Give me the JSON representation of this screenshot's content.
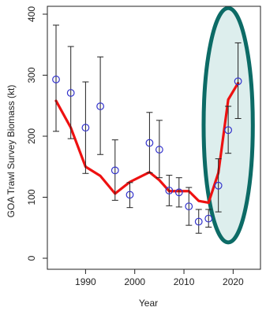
{
  "chart_data": {
    "type": "scatter",
    "title": "",
    "xlabel": "Year",
    "ylabel": "GOA Trawl Survey Biomass (kt)",
    "xlim": [
      1982,
      2023
    ],
    "ylim": [
      0,
      400
    ],
    "x_ticks": [
      1990,
      2000,
      2010,
      2020
    ],
    "y_ticks": [
      0,
      100,
      200,
      300,
      400
    ],
    "grid": false,
    "legend": "none",
    "series": [
      {
        "kind": "points_with_errorbars",
        "color": "#3333cc",
        "points": [
          {
            "x": 1984,
            "y": 293,
            "lo": 208,
            "hi": 382
          },
          {
            "x": 1987,
            "y": 271,
            "lo": 196,
            "hi": 347
          },
          {
            "x": 1990,
            "y": 214,
            "lo": 139,
            "hi": 289
          },
          {
            "x": 1993,
            "y": 249,
            "lo": 170,
            "hi": 330
          },
          {
            "x": 1996,
            "y": 144,
            "lo": 95,
            "hi": 194
          },
          {
            "x": 1999,
            "y": 104,
            "lo": 83,
            "hi": 124
          },
          {
            "x": 2003,
            "y": 189,
            "lo": 140,
            "hi": 239
          },
          {
            "x": 2005,
            "y": 178,
            "lo": 132,
            "hi": 226
          },
          {
            "x": 2007,
            "y": 111,
            "lo": 86,
            "hi": 136
          },
          {
            "x": 2009,
            "y": 108,
            "lo": 84,
            "hi": 132
          },
          {
            "x": 2011,
            "y": 85,
            "lo": 54,
            "hi": 116
          },
          {
            "x": 2013,
            "y": 60,
            "lo": 41,
            "hi": 80
          },
          {
            "x": 2015,
            "y": 65,
            "lo": 51,
            "hi": 80
          },
          {
            "x": 2017,
            "y": 119,
            "lo": 76,
            "hi": 163
          },
          {
            "x": 2019,
            "y": 210,
            "lo": 172,
            "hi": 249
          },
          {
            "x": 2021,
            "y": 290,
            "lo": 229,
            "hi": 353
          }
        ]
      },
      {
        "kind": "line",
        "color": "#ee1111",
        "x": [
          1984,
          1987,
          1990,
          1993,
          1996,
          1999,
          2003,
          2005,
          2007,
          2009,
          2011,
          2013,
          2015,
          2017,
          2019,
          2021
        ],
        "y": [
          258,
          214,
          150,
          135,
          106,
          125,
          141,
          128,
          110,
          110,
          110,
          94,
          91,
          140,
          260,
          287
        ]
      }
    ],
    "annotations": [
      {
        "shape": "ellipse",
        "fill": "#ddeeed",
        "stroke": "#0c6b66",
        "center": {
          "x": 2019,
          "y": 218
        },
        "radius_x_years": 5,
        "radius_y_kt": 192
      }
    ]
  }
}
